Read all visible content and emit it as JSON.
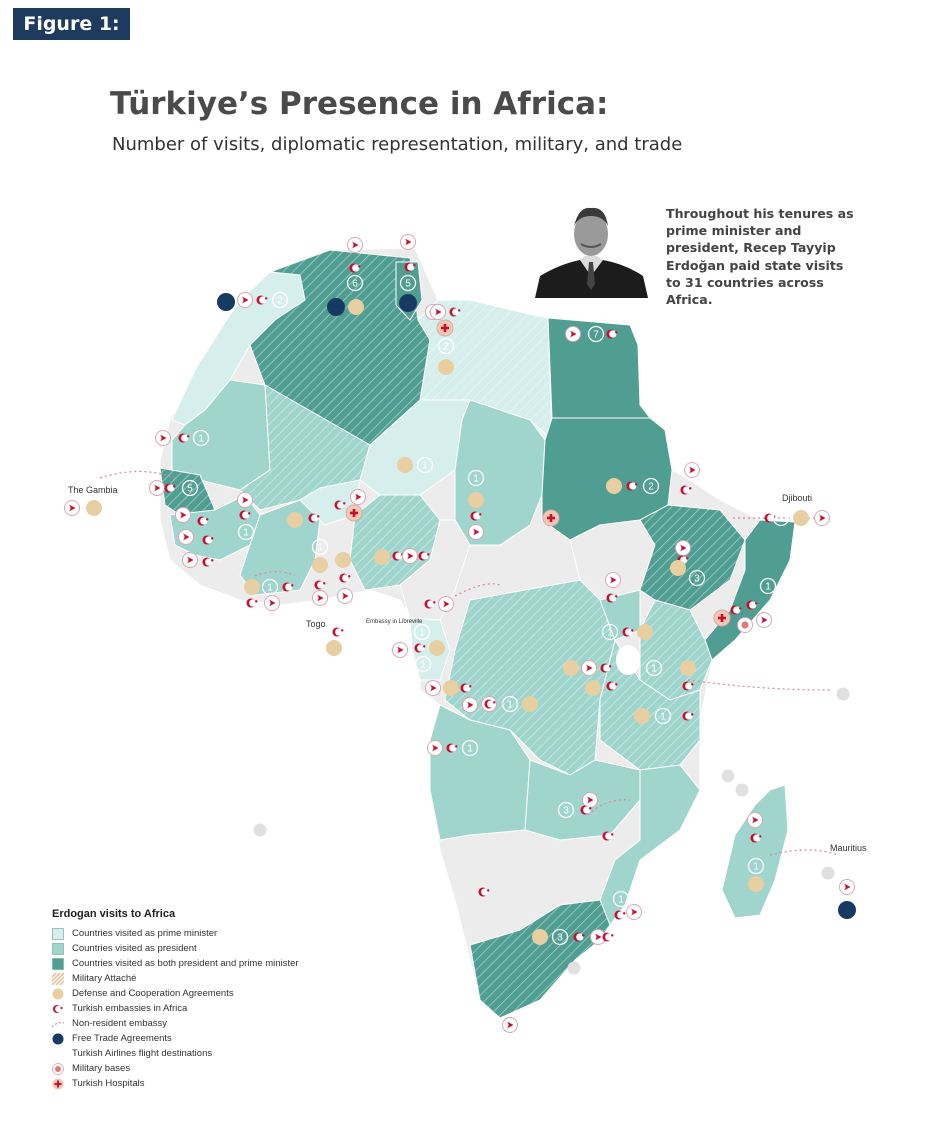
{
  "figure_label": "Figure 1:",
  "title": "Türkiye’s Presence in Africa:",
  "subtitle": "Number of visits, diplomatic representation, military, and trade",
  "quote": "Throughout his tenures as prime minister and president, Recep Tayyip Erdoğan paid state visits to 31 countries across Africa.",
  "map_labels": {
    "gambia": "The Gambia",
    "djibouti": "Djibouti",
    "togo": "Togo",
    "mauritius": "Mauritius",
    "libreville": "Embassy in Libreville"
  },
  "visit_counts": [
    "6",
    "5",
    "5",
    "2",
    "7",
    "2",
    "1",
    "5",
    "1",
    "1",
    "2",
    "3",
    "3",
    "1",
    "1",
    "1",
    "1",
    "1",
    "1",
    "1",
    "1",
    "1",
    "1",
    "3",
    "1",
    "1"
  ],
  "colors": {
    "pm": "#d6efec",
    "president": "#9fd5cc",
    "both": "#4f9e91",
    "neutral": "#ececec",
    "agreement": "#e8cfa2",
    "free_trade": "#173a63",
    "turkish_red": "#c8102e"
  },
  "legend": {
    "title": "Erdogan visits to Africa",
    "items": [
      {
        "key": "pm",
        "label": "Countries visited as prime minister",
        "icon": "swatch-light"
      },
      {
        "key": "president",
        "label": "Countries visited as president",
        "icon": "swatch-medium"
      },
      {
        "key": "both",
        "label": "Countries visited as both president and prime minister",
        "icon": "swatch-dark"
      },
      {
        "key": "attache",
        "label": "Military Attaché",
        "icon": "hatch-icon"
      },
      {
        "key": "agreement",
        "label": "Defense and Cooperation Agreements",
        "icon": "beige-circle-icon"
      },
      {
        "key": "embassy",
        "label": "Turkish embassies in Africa",
        "icon": "crescent-star-icon"
      },
      {
        "key": "nonres",
        "label": "Non-resident embassy",
        "icon": "dotted-arrow-icon"
      },
      {
        "key": "fta",
        "label": "Free Trade Agreements",
        "icon": "navy-circle-icon"
      },
      {
        "key": "airlines",
        "label": "Turkish Airlines flight destinations",
        "icon": "airline-tail-icon"
      },
      {
        "key": "bases",
        "label": "Military bases",
        "icon": "military-base-icon"
      },
      {
        "key": "hospitals",
        "label": "Turkish Hospitals",
        "icon": "hospital-cross-icon"
      }
    ]
  }
}
